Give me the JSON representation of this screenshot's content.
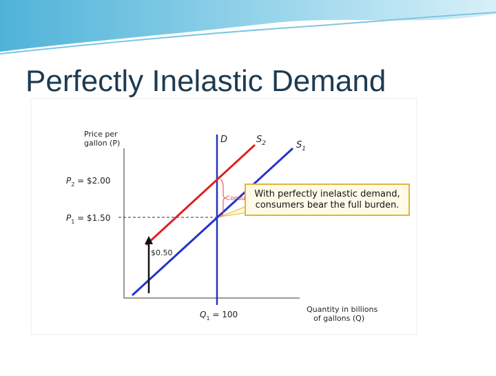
{
  "title": "Perfectly Inelastic Demand",
  "diagram": {
    "y_axis_label": [
      "Price per",
      "gallon (P)"
    ],
    "x_axis_label": [
      "Quantity in billions",
      "of gallons (Q)"
    ],
    "demand_label": "D",
    "supply2_label": {
      "symbol": "S",
      "subscript": "2"
    },
    "supply1_label": {
      "symbol": "S",
      "subscript": "1"
    },
    "p2_label": {
      "symbol": "P",
      "subscript": "2",
      "text": " = $2.00"
    },
    "p1_label": {
      "symbol": "P",
      "subscript": "1",
      "text": " = $1.50"
    },
    "tax_label": "$0.50",
    "q1_label": {
      "symbol": "Q",
      "subscript": "1",
      "text": " = 100"
    },
    "bracket_label": "Consur",
    "callout": [
      "With perfectly inelastic demand,",
      "consumers bear the full burden."
    ]
  }
}
